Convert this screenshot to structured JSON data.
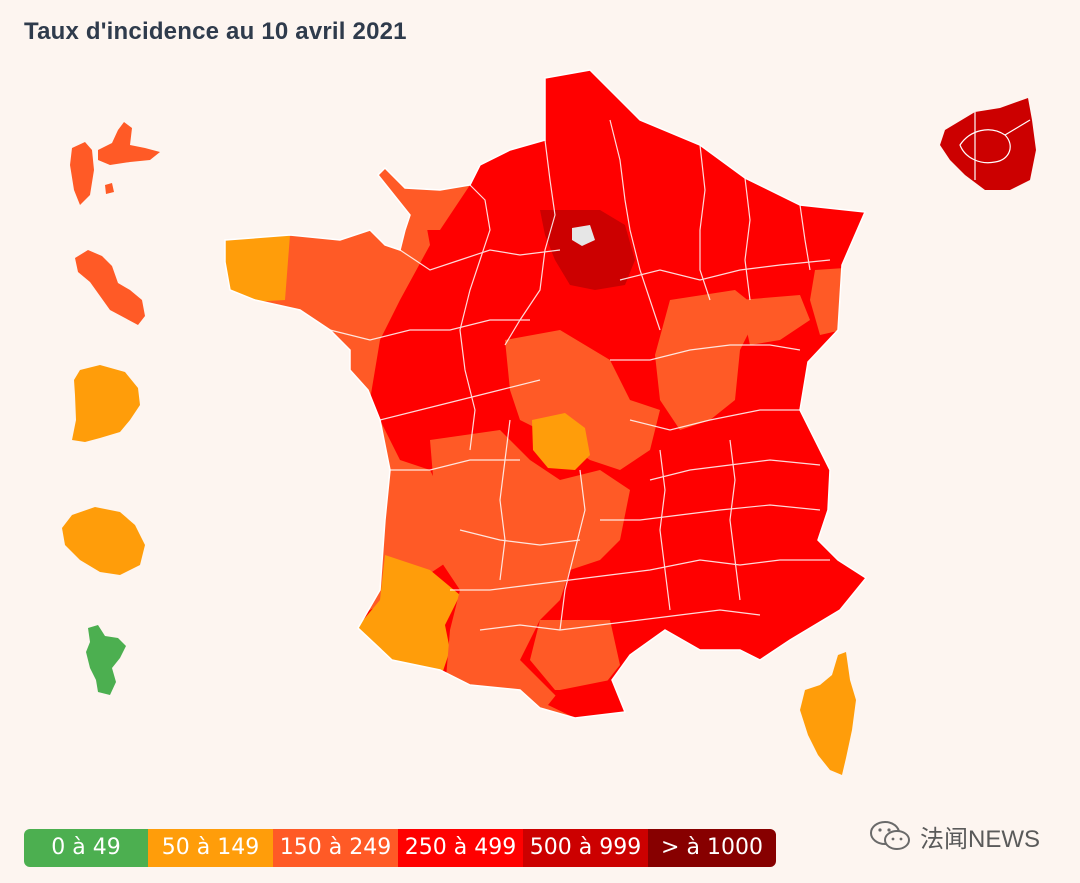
{
  "title": "Taux d'incidence au 10 avril 2021",
  "colors": {
    "c0": "#4caf50",
    "c1": "#ff9d0a",
    "c2": "#ff5a26",
    "c3": "#ff0000",
    "c4": "#cc0000",
    "c5": "#870000",
    "nodata": "#e6e6e6"
  },
  "legend": [
    {
      "label": "0 à 49",
      "color_key": "c0"
    },
    {
      "label": "50 à 149",
      "color_key": "c1"
    },
    {
      "label": "150 à 249",
      "color_key": "c2"
    },
    {
      "label": "250 à 499",
      "color_key": "c3"
    },
    {
      "label": "500 à 999",
      "color_key": "c4"
    },
    {
      "label": "> à 1000",
      "color_key": "c5"
    }
  ],
  "watermark": {
    "text": "法闻NEWS",
    "icon": "wechat-icon"
  }
}
